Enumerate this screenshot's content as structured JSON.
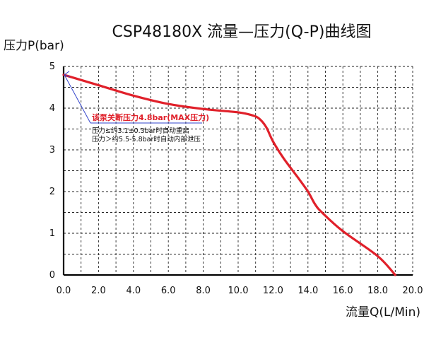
{
  "chart_data": {
    "type": "line",
    "title": "CSP48180X 流量—压力(Q-P)曲线图",
    "xlabel": "流量Q(L/Min)",
    "ylabel": "压力P(bar)",
    "xlim": [
      0,
      20
    ],
    "ylim": [
      0,
      5
    ],
    "x_ticks": [
      "0.0",
      "2.0",
      "4.0",
      "6.0",
      "8.0",
      "10.0",
      "12.0",
      "14.0",
      "16.0",
      "18.0",
      "20.0"
    ],
    "y_ticks": [
      "0",
      "1",
      "2",
      "3",
      "4",
      "5"
    ],
    "grid": true,
    "grid_style": "dashed",
    "series": [
      {
        "color": "#e0202a",
        "x": [
          0.0,
          2.0,
          4.0,
          6.0,
          8.0,
          10.0,
          10.8,
          11.2,
          11.6,
          12.0,
          12.6,
          13.4,
          14.0,
          14.4,
          14.8,
          16.0,
          18.0,
          19.0
        ],
        "y": [
          4.8,
          4.55,
          4.3,
          4.1,
          3.98,
          3.9,
          3.83,
          3.75,
          3.55,
          3.2,
          2.8,
          2.35,
          2.0,
          1.7,
          1.5,
          1.05,
          0.45,
          0.0
        ]
      }
    ],
    "annotations": [
      {
        "text": "该泵关断压力4.8bar(MAX压力)",
        "color": "#e0202a",
        "points_to": {
          "x": 0.0,
          "y": 4.8
        }
      },
      {
        "text": "压力≤约3.1±0.3bar时自动重启",
        "color": "#111111"
      },
      {
        "text": "压力＞约5.5-5.8bar时自动内部泄压",
        "color": "#111111"
      }
    ],
    "colors": {
      "curve": "#e0202a",
      "axis": "#000000",
      "grid": "#222222",
      "annotation_line": "#3344cc"
    }
  }
}
